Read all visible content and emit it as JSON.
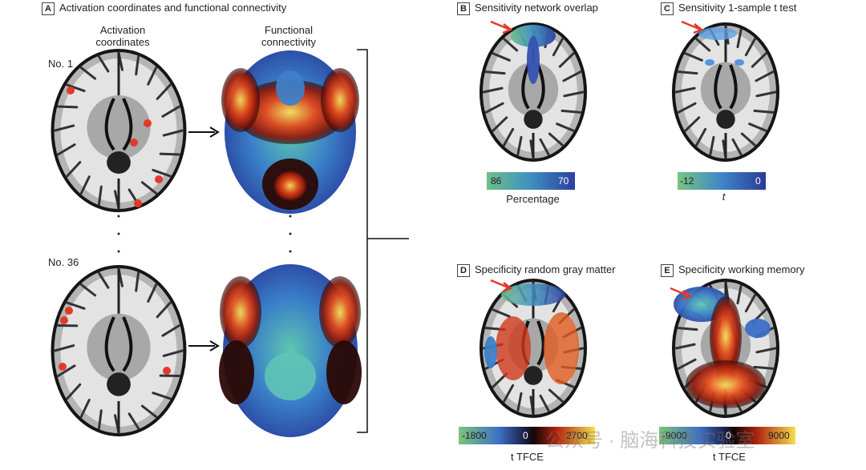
{
  "panels": [
    {
      "letter": "A",
      "title": "Activation coordinates and functional connectivity",
      "columns": [
        "Activation coordinates",
        "Functional connectivity"
      ],
      "rows": [
        "No. 1",
        "No. 36"
      ]
    },
    {
      "letter": "B",
      "title": "Sensitivity network overlap",
      "colorbar": {
        "labels": [
          "86",
          "70"
        ],
        "caption": "Percentage"
      }
    },
    {
      "letter": "C",
      "title": "Sensitivity 1-sample t test",
      "colorbar": {
        "labels": [
          "-12",
          "0"
        ],
        "caption": "t"
      }
    },
    {
      "letter": "D",
      "title": "Specificity random gray matter",
      "colorbar": {
        "labels": [
          "-1800",
          "0",
          "2700"
        ],
        "caption": "t TFCE"
      }
    },
    {
      "letter": "E",
      "title": "Specificity working memory",
      "colorbar": {
        "labels": [
          "-9000",
          "0",
          "9000"
        ],
        "caption": "t TFCE"
      }
    }
  ],
  "watermark": "公众号 · 脑海科技实验室"
}
